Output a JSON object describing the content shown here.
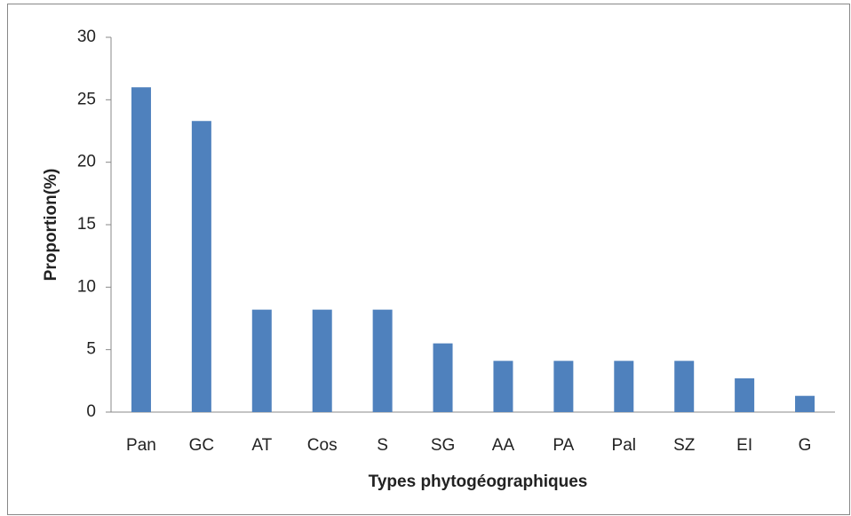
{
  "chart_data": {
    "type": "bar",
    "x_label": "Types phytogéographiques",
    "y_label": "Proportion(%)",
    "categories": [
      "Pan",
      "GC",
      "AT",
      "Cos",
      "S",
      "SG",
      "AA",
      "PA",
      "Pal",
      "SZ",
      "EI",
      "G"
    ],
    "values": [
      26,
      23.3,
      8.2,
      8.2,
      8.2,
      5.5,
      4.1,
      4.1,
      4.1,
      4.1,
      2.7,
      1.3
    ],
    "color": "#4f81bd",
    "ylim": [
      0,
      30
    ],
    "yticks": [
      0,
      5,
      10,
      15,
      20,
      25,
      30
    ],
    "grid": false
  }
}
